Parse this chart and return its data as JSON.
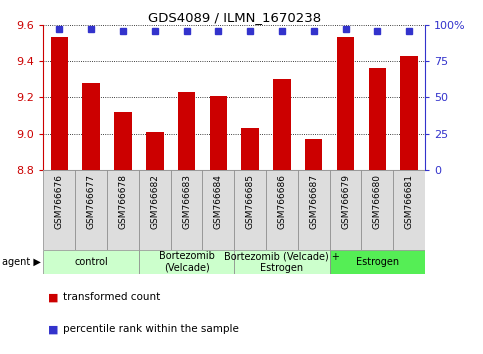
{
  "title": "GDS4089 / ILMN_1670238",
  "samples": [
    "GSM766676",
    "GSM766677",
    "GSM766678",
    "GSM766682",
    "GSM766683",
    "GSM766684",
    "GSM766685",
    "GSM766686",
    "GSM766687",
    "GSM766679",
    "GSM766680",
    "GSM766681"
  ],
  "red_values": [
    9.53,
    9.28,
    9.12,
    9.01,
    9.23,
    9.21,
    9.03,
    9.3,
    8.97,
    9.53,
    9.36,
    9.43
  ],
  "blue_values": [
    97,
    97,
    96,
    96,
    96,
    96,
    96,
    96,
    96,
    97,
    96,
    96
  ],
  "ylim_left": [
    8.8,
    9.6
  ],
  "ylim_right": [
    0,
    100
  ],
  "yticks_left": [
    8.8,
    9.0,
    9.2,
    9.4,
    9.6
  ],
  "yticks_right": [
    0,
    25,
    50,
    75,
    100
  ],
  "group_colors": [
    "#ccffcc",
    "#ccffcc",
    "#ccffcc",
    "#55ee55"
  ],
  "group_labels": [
    "control",
    "Bortezomib\n(Velcade)",
    "Bortezomib (Velcade) +\nEstrogen",
    "Estrogen"
  ],
  "group_ranges": [
    [
      0,
      3
    ],
    [
      3,
      6
    ],
    [
      6,
      9
    ],
    [
      9,
      12
    ]
  ],
  "bar_color": "#cc0000",
  "blue_color": "#3333cc",
  "tick_label_color": "#cc0000",
  "right_axis_color": "#3333cc",
  "grid_color": "#000000",
  "legend_red_label": "transformed count",
  "legend_blue_label": "percentile rank within the sample",
  "bar_width": 0.55,
  "blue_marker_size": 4,
  "group_text_fontsize": 7,
  "sample_label_fontsize": 6.5,
  "axis_label_fontsize": 8
}
